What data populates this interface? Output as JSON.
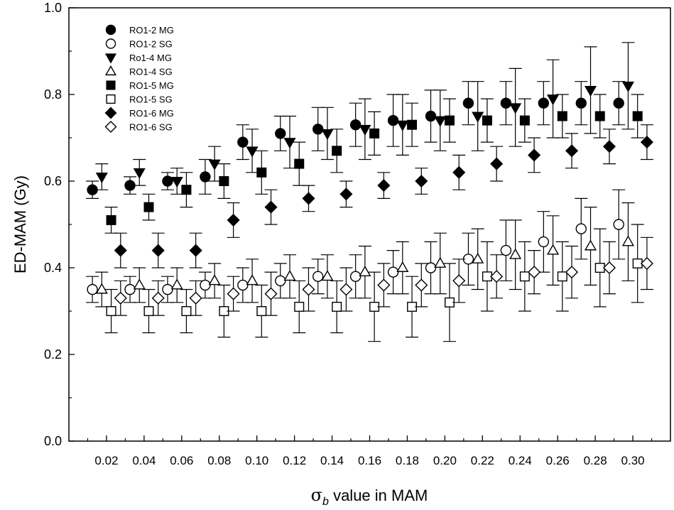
{
  "chart_data": {
    "type": "scatter",
    "title": "",
    "xlabel_symbol": "σ",
    "xlabel_subscript": "b",
    "xlabel_rest": " value in MAM",
    "ylabel": "ED-MAM (Gy)",
    "xlim": [
      0.0,
      0.32
    ],
    "ylim": [
      0.0,
      1.0
    ],
    "x_ticks": [
      "0.02",
      "0.04",
      "0.06",
      "0.08",
      "0.10",
      "0.12",
      "0.14",
      "0.16",
      "0.18",
      "0.20",
      "0.22",
      "0.24",
      "0.26",
      "0.28",
      "0.30"
    ],
    "y_ticks": [
      "0.0",
      "0.2",
      "0.4",
      "0.6",
      "0.8",
      "1.0"
    ],
    "grid": false,
    "legend_position": "top-left",
    "series": [
      {
        "name": "RO1-2 MG",
        "marker": "circle",
        "filled": true,
        "offset": -0.0075,
        "y": [
          0.58,
          0.59,
          0.6,
          0.61,
          0.69,
          0.71,
          0.72,
          0.73,
          0.74,
          0.75,
          0.78,
          0.78,
          0.78,
          0.78,
          0.78
        ],
        "err": [
          0.02,
          0.02,
          0.02,
          0.04,
          0.04,
          0.04,
          0.05,
          0.05,
          0.06,
          0.06,
          0.05,
          0.05,
          0.05,
          0.05,
          0.05
        ]
      },
      {
        "name": "RO1-2 SG",
        "marker": "circle",
        "filled": false,
        "offset": -0.0075,
        "y": [
          0.35,
          0.35,
          0.35,
          0.36,
          0.36,
          0.37,
          0.38,
          0.38,
          0.39,
          0.4,
          0.42,
          0.44,
          0.46,
          0.49,
          0.5
        ],
        "err": [
          0.03,
          0.03,
          0.03,
          0.03,
          0.04,
          0.04,
          0.04,
          0.05,
          0.05,
          0.06,
          0.06,
          0.07,
          0.07,
          0.07,
          0.08
        ]
      },
      {
        "name": "Ro1-4 MG",
        "marker": "triangle-down",
        "filled": true,
        "offset": -0.0025,
        "y": [
          0.61,
          0.62,
          0.6,
          0.64,
          0.67,
          0.69,
          0.71,
          0.72,
          0.73,
          0.74,
          0.75,
          0.77,
          0.79,
          0.81,
          0.82
        ],
        "err": [
          0.03,
          0.03,
          0.03,
          0.04,
          0.05,
          0.06,
          0.06,
          0.07,
          0.07,
          0.07,
          0.08,
          0.09,
          0.09,
          0.1,
          0.1
        ]
      },
      {
        "name": "RO1-4 SG",
        "marker": "triangle-up",
        "filled": false,
        "offset": -0.0025,
        "y": [
          0.35,
          0.36,
          0.36,
          0.37,
          0.37,
          0.38,
          0.38,
          0.39,
          0.4,
          0.41,
          0.42,
          0.43,
          0.44,
          0.45,
          0.46
        ],
        "err": [
          0.04,
          0.04,
          0.04,
          0.04,
          0.05,
          0.05,
          0.05,
          0.06,
          0.06,
          0.07,
          0.07,
          0.08,
          0.08,
          0.09,
          0.09
        ]
      },
      {
        "name": "RO1-5 MG",
        "marker": "square",
        "filled": true,
        "offset": 0.0025,
        "y": [
          0.51,
          0.54,
          0.58,
          0.6,
          0.62,
          0.64,
          0.67,
          0.71,
          0.73,
          0.74,
          0.74,
          0.74,
          0.75,
          0.75,
          0.75
        ],
        "err": [
          0.03,
          0.03,
          0.04,
          0.04,
          0.05,
          0.05,
          0.05,
          0.05,
          0.05,
          0.05,
          0.05,
          0.05,
          0.05,
          0.05,
          0.05
        ]
      },
      {
        "name": "RO1-5 SG",
        "marker": "square",
        "filled": false,
        "offset": 0.0025,
        "y": [
          0.3,
          0.3,
          0.3,
          0.3,
          0.3,
          0.31,
          0.31,
          0.31,
          0.31,
          0.32,
          0.38,
          0.38,
          0.38,
          0.4,
          0.41
        ],
        "err": [
          0.05,
          0.05,
          0.05,
          0.06,
          0.06,
          0.06,
          0.06,
          0.08,
          0.07,
          0.09,
          0.08,
          0.08,
          0.08,
          0.09,
          0.09
        ]
      },
      {
        "name": "RO1-6 MG",
        "marker": "diamond",
        "filled": true,
        "offset": 0.0075,
        "y": [
          0.44,
          0.44,
          0.44,
          0.51,
          0.54,
          0.56,
          0.57,
          0.59,
          0.6,
          0.62,
          0.64,
          0.66,
          0.67,
          0.68,
          0.69
        ],
        "err": [
          0.04,
          0.04,
          0.04,
          0.04,
          0.04,
          0.03,
          0.03,
          0.03,
          0.03,
          0.04,
          0.04,
          0.04,
          0.04,
          0.04,
          0.04
        ]
      },
      {
        "name": "RO1-6 SG",
        "marker": "diamond",
        "filled": false,
        "offset": 0.0075,
        "y": [
          0.33,
          0.33,
          0.33,
          0.34,
          0.34,
          0.35,
          0.35,
          0.36,
          0.36,
          0.37,
          0.38,
          0.39,
          0.39,
          0.4,
          0.41
        ],
        "err": [
          0.04,
          0.04,
          0.04,
          0.04,
          0.05,
          0.05,
          0.05,
          0.05,
          0.05,
          0.05,
          0.05,
          0.05,
          0.06,
          0.06,
          0.06
        ]
      }
    ],
    "x": [
      0.02,
      0.04,
      0.06,
      0.08,
      0.1,
      0.12,
      0.14,
      0.16,
      0.18,
      0.2,
      0.22,
      0.24,
      0.26,
      0.28,
      0.3
    ]
  }
}
